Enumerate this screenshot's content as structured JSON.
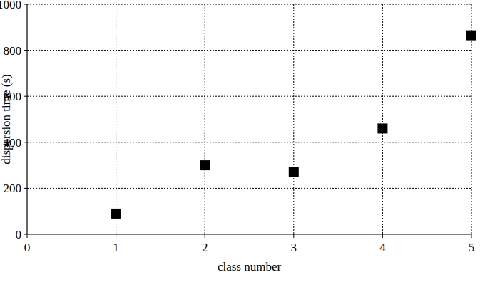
{
  "chart_data": {
    "type": "scatter",
    "x_label": "class number",
    "y_label": "dispersion time (s)",
    "x": [
      1,
      2,
      3,
      4,
      5
    ],
    "values": [
      90,
      300,
      270,
      460,
      865
    ],
    "color": "#000000",
    "marker": "square",
    "xlim": [
      0,
      5
    ],
    "xticks": [
      0,
      1,
      2,
      3,
      4,
      5
    ],
    "ylim": [
      0,
      1000
    ],
    "yticks": [
      0,
      200,
      400,
      600,
      800,
      1000
    ],
    "grid": true
  }
}
